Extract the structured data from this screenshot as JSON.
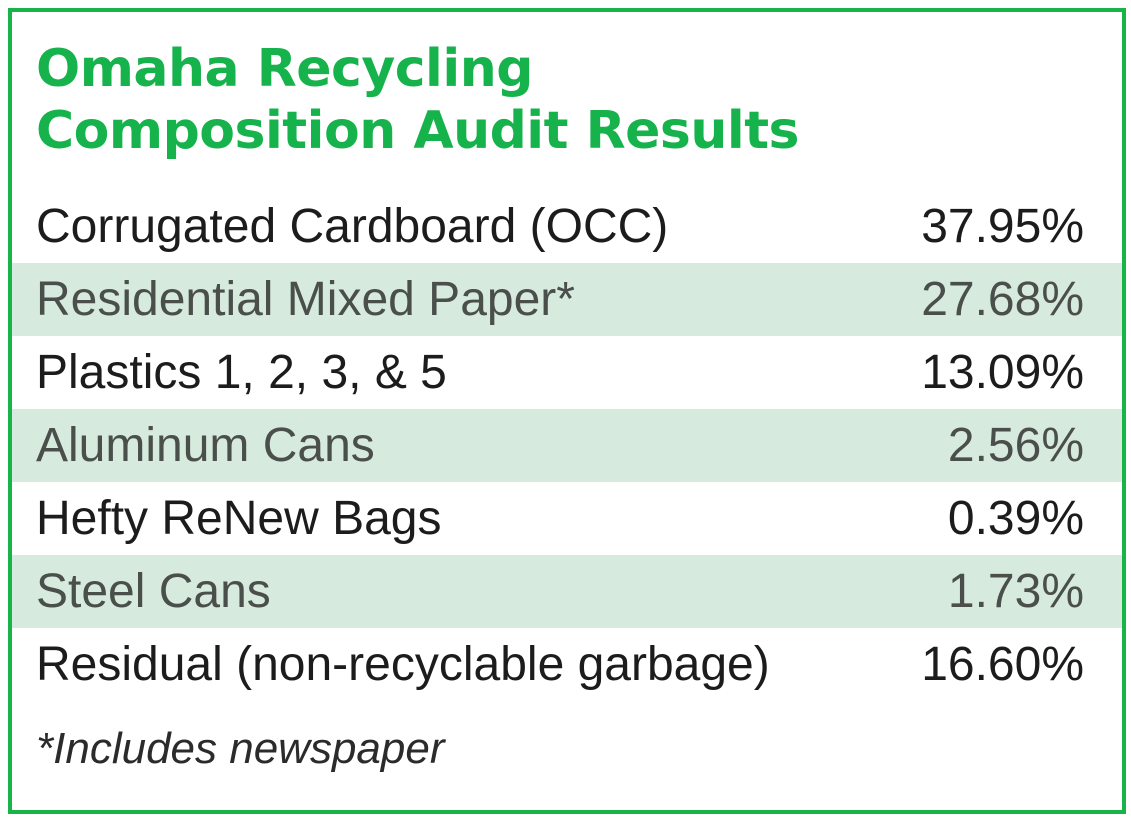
{
  "chart_data": {
    "type": "table",
    "title_lines": [
      "Omaha Recycling",
      "Composition Audit Results"
    ],
    "rows": [
      {
        "label": "Corrugated Cardboard (OCC)",
        "value": "37.95%"
      },
      {
        "label": "Residential Mixed Paper*",
        "value": "27.68%"
      },
      {
        "label": "Plastics 1, 2, 3, & 5",
        "value": "13.09%"
      },
      {
        "label": "Aluminum Cans",
        "value": "2.56%"
      },
      {
        "label": "Hefty ReNew Bags",
        "value": "0.39%"
      },
      {
        "label": "Steel Cans",
        "value": "1.73%"
      },
      {
        "label": "Residual (non-recyclable garbage)",
        "value": "16.60%"
      }
    ],
    "footnote": "*Includes newspaper"
  },
  "colors": {
    "accent_green": "#18b44a",
    "row_shade": "#d6ebdd"
  }
}
